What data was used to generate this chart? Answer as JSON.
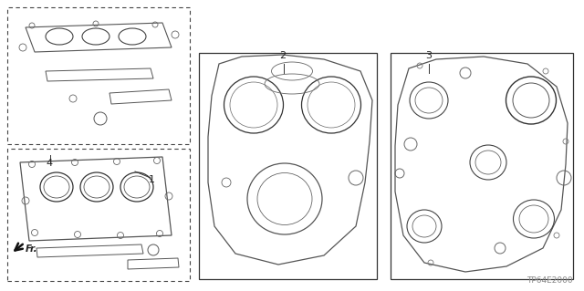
{
  "bg_color": "#ffffff",
  "line_color": "#333333",
  "dashed_color": "#555555",
  "text_color": "#222222",
  "footer_text": "TP64E2000",
  "fig_width": 6.4,
  "fig_height": 3.19,
  "dpi": 100
}
